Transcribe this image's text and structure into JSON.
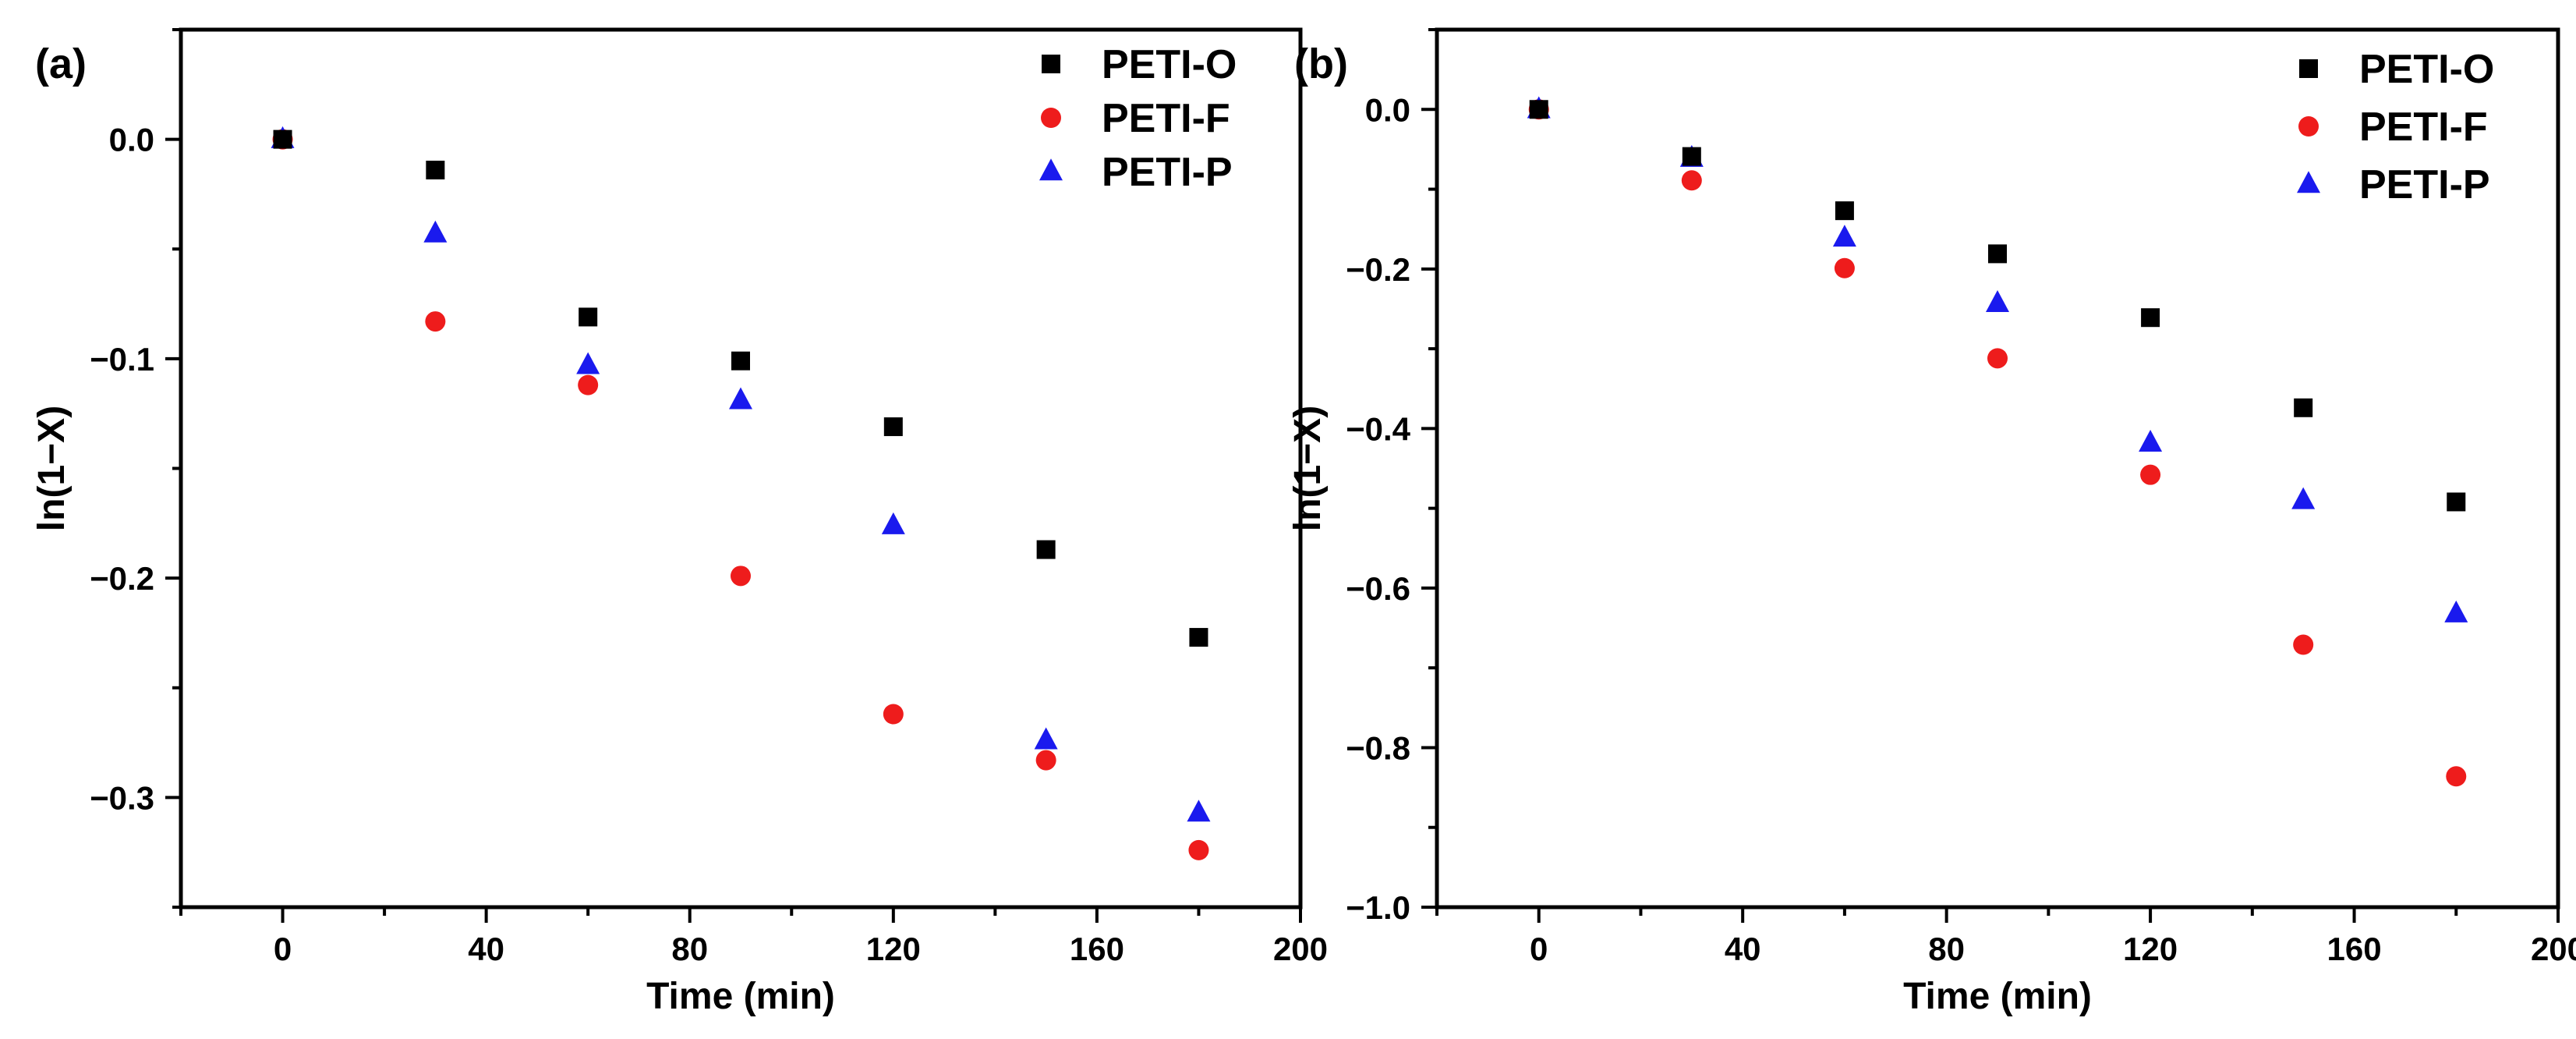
{
  "chart_data": [
    {
      "panel": "(a)",
      "type": "scatter",
      "xlabel": "Time (min)",
      "ylabel": "ln(1−X)",
      "xlim": [
        -20,
        200
      ],
      "ylim": [
        -0.35,
        0.05
      ],
      "xticks": [
        0,
        40,
        80,
        120,
        160,
        200
      ],
      "yticks": [
        0.0,
        -0.1,
        -0.2,
        -0.3
      ],
      "xtick_labels": [
        "0",
        "40",
        "80",
        "120",
        "160",
        "200"
      ],
      "ytick_labels": [
        "0.0",
        "−0.1",
        "−0.2",
        "−0.3"
      ],
      "x": [
        0,
        30,
        60,
        90,
        120,
        150,
        180
      ],
      "legend_position": "top-right",
      "series": [
        {
          "name": "PETI-O",
          "marker": "square",
          "color": "#000000",
          "values": [
            0,
            -0.014,
            -0.081,
            -0.101,
            -0.131,
            -0.187,
            -0.227
          ]
        },
        {
          "name": "PETI-F",
          "marker": "circle",
          "color": "#ee1c1c",
          "values": [
            0,
            -0.083,
            -0.112,
            -0.199,
            -0.262,
            -0.283,
            -0.324
          ]
        },
        {
          "name": "PETI-P",
          "marker": "triangle",
          "color": "#1a1aee",
          "values": [
            0,
            -0.043,
            -0.103,
            -0.119,
            -0.176,
            -0.274,
            -0.307
          ]
        }
      ]
    },
    {
      "panel": "(b)",
      "type": "scatter",
      "xlabel": "Time (min)",
      "ylabel": "ln(1−X)",
      "xlim": [
        -20,
        200
      ],
      "ylim": [
        -1.0,
        0.1
      ],
      "xticks": [
        0,
        40,
        80,
        120,
        160,
        200
      ],
      "yticks": [
        0.0,
        -0.2,
        -0.4,
        -0.6,
        -0.8,
        -1.0
      ],
      "xtick_labels": [
        "0",
        "40",
        "80",
        "120",
        "160",
        "200"
      ],
      "ytick_labels": [
        "0.0",
        "−0.2",
        "−0.4",
        "−0.6",
        "−0.8",
        "−1.0"
      ],
      "x": [
        0,
        30,
        60,
        90,
        120,
        150,
        180
      ],
      "legend_position": "top-right",
      "series": [
        {
          "name": "PETI-O",
          "marker": "square",
          "color": "#000000",
          "values": [
            0,
            -0.059,
            -0.127,
            -0.181,
            -0.261,
            -0.374,
            -0.492
          ]
        },
        {
          "name": "PETI-F",
          "marker": "circle",
          "color": "#ee1c1c",
          "values": [
            0,
            -0.089,
            -0.199,
            -0.312,
            -0.458,
            -0.671,
            -0.836
          ]
        },
        {
          "name": "PETI-P",
          "marker": "triangle",
          "color": "#1a1aee",
          "values": [
            0,
            -0.061,
            -0.161,
            -0.243,
            -0.418,
            -0.49,
            -0.632
          ]
        }
      ]
    }
  ]
}
